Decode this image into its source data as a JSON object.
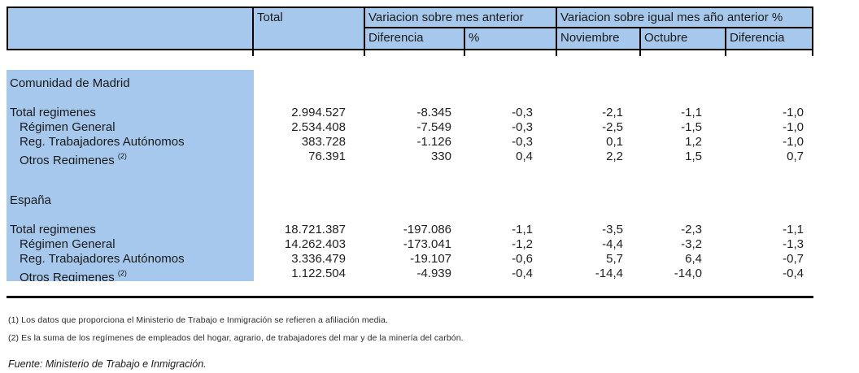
{
  "header": {
    "col_total": "Total",
    "group_month": "Variacion sobre mes anterior",
    "group_year": "Variacion sobre igual mes año anterior %",
    "sub_diferencia_month": "Diferencia",
    "sub_percent": "%",
    "sub_noviembre": "Noviembre",
    "sub_octubre": "Octubre",
    "sub_diferencia_year": "Diferencia"
  },
  "sections": [
    {
      "title": "Comunidad de Madrid",
      "rows": [
        {
          "label": "Total regimenes",
          "sup": "",
          "indent": false,
          "values": [
            "2.994.527",
            "-8.345",
            "-0,3",
            "-2,1",
            "-1,1",
            "-1,0"
          ]
        },
        {
          "label": "Régimen General",
          "sup": "",
          "indent": true,
          "values": [
            "2.534.408",
            "-7.549",
            "-0,3",
            "-2,5",
            "-1,5",
            "-1,0"
          ]
        },
        {
          "label": "Reg. Trabajadores Autónomos",
          "sup": "",
          "indent": true,
          "values": [
            "383.728",
            "-1.126",
            "-0,3",
            "0,1",
            "1,2",
            "-1,0"
          ]
        },
        {
          "label": "Otros Regimenes",
          "sup": "(2)",
          "indent": true,
          "values": [
            "76.391",
            "330",
            "0,4",
            "2,2",
            "1,5",
            "0,7"
          ]
        }
      ]
    },
    {
      "title": "España",
      "rows": [
        {
          "label": "Total regimenes",
          "sup": "",
          "indent": false,
          "values": [
            "18.721.387",
            "-197.086",
            "-1,1",
            "-3,5",
            "-2,3",
            "-1,1"
          ]
        },
        {
          "label": "Régimen General",
          "sup": "",
          "indent": true,
          "values": [
            "14.262.403",
            "-173.041",
            "-1,2",
            "-4,4",
            "-3,2",
            "-1,3"
          ]
        },
        {
          "label": "Reg. Trabajadores Autónomos",
          "sup": "",
          "indent": true,
          "values": [
            "3.336.479",
            "-19.107",
            "-0,6",
            "5,7",
            "6,4",
            "-0,7"
          ]
        },
        {
          "label": "Otros Regimenes",
          "sup": "(2)",
          "indent": true,
          "values": [
            "1.122.504",
            "-4.939",
            "-0,4",
            "-14,4",
            "-14,0",
            "-0,4"
          ]
        }
      ]
    }
  ],
  "footnotes": [
    "(1) Los datos que proporciona el Ministerio de Trabajo e Inmigración se refieren a afiliación media.",
    "(2) Es la suma de los regímenes de empleados del hogar, agrario, de trabajadores del mar y de la minería del carbón."
  ],
  "source": "Fuente: Ministerio de Trabajo e Inmigración.",
  "colors": {
    "header_fill": "#a5c8ec",
    "border": "#000000",
    "background": "#ffffff"
  }
}
